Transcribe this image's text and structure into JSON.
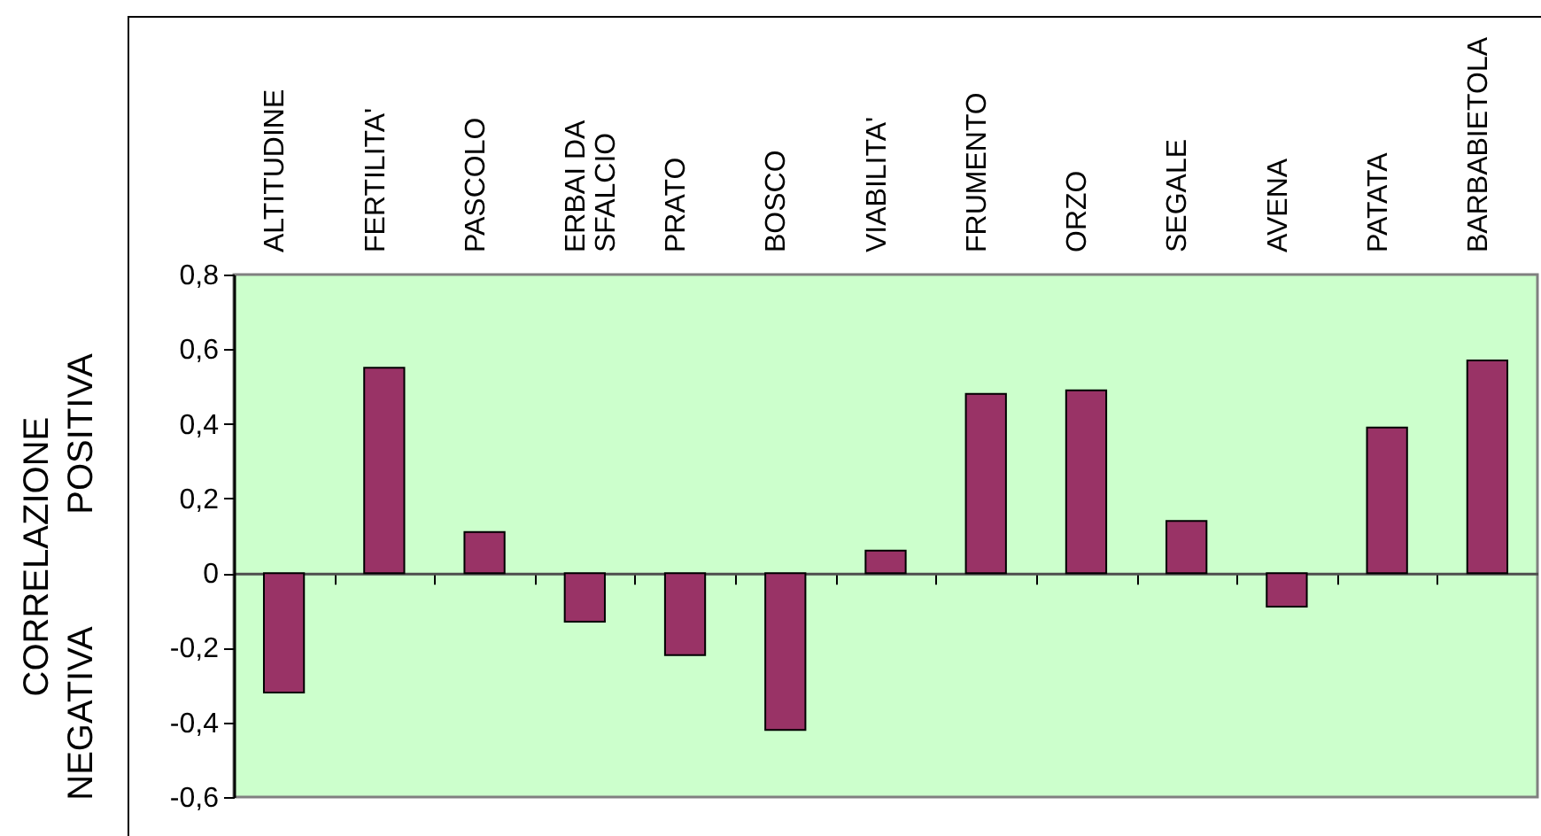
{
  "chart_data": {
    "type": "bar",
    "ylabel": "CORRELAZIONE\nNEGATIVA POSITIVA",
    "categories": [
      "ALTITUDINE",
      "FERTILITA'",
      "PASCOLO",
      "ERBAI DA SFALCIO",
      "PRATO",
      "BOSCO",
      "VIABILITA'",
      "FRUMENTO",
      "ORZO",
      "SEGALE",
      "AVENA",
      "PATATA",
      "BARBABIETOLA"
    ],
    "values": [
      -0.32,
      0.55,
      0.11,
      -0.13,
      -0.22,
      -0.42,
      0.06,
      0.48,
      0.49,
      0.14,
      -0.09,
      0.39,
      0.57
    ],
    "color": "#993366",
    "ylim": [
      -0.6,
      0.8
    ],
    "yticks": [
      {
        "value": -0.6,
        "label": "-0,6"
      },
      {
        "value": -0.4,
        "label": "-0,4"
      },
      {
        "value": -0.2,
        "label": "-0,2"
      },
      0,
      {
        "value": 0.2,
        "label": "0,2"
      },
      {
        "value": 0.4,
        "label": "0,4"
      },
      {
        "value": 0.6,
        "label": "0,6"
      },
      {
        "value": 0.8,
        "label": "0,8"
      }
    ]
  }
}
